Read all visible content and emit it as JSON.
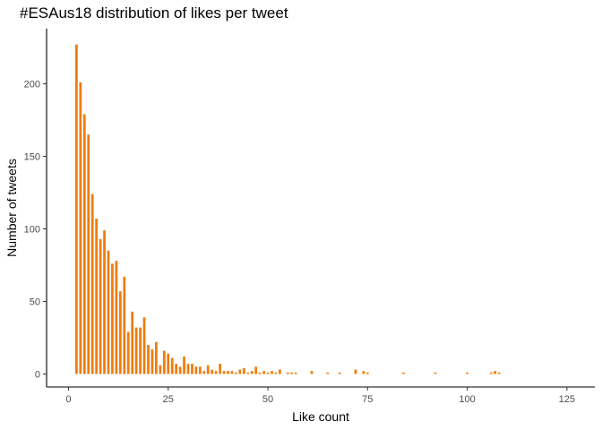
{
  "chart_data": {
    "type": "bar",
    "title": "#ESAus18 distribution of likes per tweet",
    "xlabel": "Like count",
    "ylabel": "Number of tweets",
    "xlim": [
      -5.5,
      132
    ],
    "ylim": [
      -9,
      238
    ],
    "x_ticks": [
      0,
      25,
      50,
      75,
      100,
      125
    ],
    "y_ticks": [
      0,
      50,
      100,
      150,
      200
    ],
    "grid": false,
    "bar_color": "#F07C0C",
    "x": [
      2,
      3,
      4,
      5,
      6,
      7,
      8,
      9,
      10,
      11,
      12,
      13,
      14,
      15,
      16,
      17,
      18,
      19,
      20,
      21,
      22,
      23,
      24,
      25,
      26,
      27,
      28,
      29,
      30,
      31,
      32,
      33,
      34,
      35,
      36,
      37,
      38,
      39,
      40,
      41,
      42,
      43,
      44,
      45,
      46,
      47,
      48,
      49,
      50,
      51,
      52,
      53,
      55,
      56,
      57,
      61,
      65,
      68,
      72,
      74,
      75,
      84,
      92,
      100,
      106,
      107,
      108
    ],
    "values": [
      227,
      201,
      179,
      165,
      124,
      107,
      93,
      99,
      85,
      76,
      78,
      57,
      67,
      29,
      43,
      32,
      32,
      39,
      20,
      17,
      22,
      6,
      16,
      14,
      11,
      7,
      5,
      12,
      7,
      7,
      5,
      5,
      2,
      6,
      3,
      2,
      7,
      2,
      2,
      2,
      1,
      3,
      4,
      1,
      2,
      5,
      1,
      2,
      1,
      2,
      1,
      3,
      1,
      1,
      1,
      2,
      1,
      1,
      3,
      2,
      1,
      1,
      1,
      1,
      1,
      2,
      1
    ]
  }
}
